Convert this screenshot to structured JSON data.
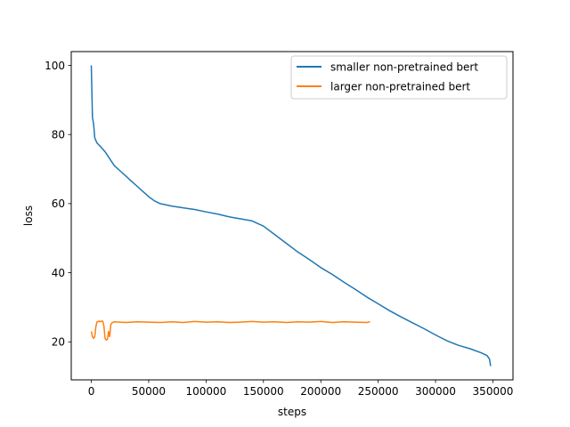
{
  "chart_data": {
    "type": "line",
    "title": "",
    "xlabel": "steps",
    "ylabel": "loss",
    "xlim": [
      -17500,
      367500
    ],
    "ylim": [
      9.0,
      104.0
    ],
    "x_ticks": [
      0,
      50000,
      100000,
      150000,
      200000,
      250000,
      300000,
      350000
    ],
    "y_ticks": [
      20,
      40,
      60,
      80,
      100
    ],
    "grid": false,
    "legend_position": "top-right",
    "series": [
      {
        "name": "smaller non-pretrained bert",
        "color": "#1f77b4",
        "x": [
          0,
          1000,
          2000,
          3000,
          5000,
          8000,
          12000,
          16000,
          20000,
          25000,
          30000,
          35000,
          40000,
          45000,
          50000,
          55000,
          60000,
          70000,
          80000,
          90000,
          100000,
          110000,
          120000,
          130000,
          140000,
          150000,
          160000,
          170000,
          180000,
          190000,
          200000,
          210000,
          220000,
          230000,
          240000,
          250000,
          260000,
          270000,
          280000,
          290000,
          300000,
          310000,
          320000,
          330000,
          340000,
          345000,
          347000,
          348000
        ],
        "y": [
          100.0,
          85.0,
          83.0,
          79.0,
          77.5,
          76.5,
          75.0,
          73.0,
          71.0,
          69.5,
          68.0,
          66.5,
          65.0,
          63.5,
          62.0,
          60.8,
          60.0,
          59.3,
          58.8,
          58.3,
          57.6,
          57.0,
          56.2,
          55.6,
          55.0,
          53.5,
          51.0,
          48.5,
          46.0,
          43.8,
          41.5,
          39.5,
          37.3,
          35.2,
          33.0,
          31.0,
          29.0,
          27.2,
          25.5,
          23.8,
          22.0,
          20.3,
          19.0,
          18.0,
          16.8,
          16.0,
          15.0,
          13.0
        ]
      },
      {
        "name": "larger non-pretrained bert",
        "color": "#ff7f0e",
        "x": [
          0,
          1000,
          2000,
          3000,
          4000,
          5000,
          6000,
          7000,
          8000,
          9000,
          10000,
          11000,
          12000,
          13000,
          14000,
          15000,
          16000,
          17000,
          18000,
          20000,
          25000,
          30000,
          40000,
          50000,
          60000,
          70000,
          80000,
          90000,
          100000,
          110000,
          120000,
          130000,
          140000,
          150000,
          160000,
          170000,
          180000,
          190000,
          200000,
          210000,
          220000,
          230000,
          240000,
          243000
        ],
        "y": [
          23.0,
          21.5,
          21.0,
          21.5,
          24.5,
          25.8,
          25.9,
          26.0,
          25.8,
          26.0,
          26.0,
          24.5,
          21.0,
          20.5,
          20.8,
          23.0,
          21.5,
          25.0,
          25.5,
          25.8,
          25.7,
          25.6,
          25.8,
          25.7,
          25.6,
          25.8,
          25.6,
          25.9,
          25.7,
          25.8,
          25.6,
          25.7,
          25.9,
          25.7,
          25.8,
          25.6,
          25.8,
          25.7,
          25.9,
          25.6,
          25.8,
          25.7,
          25.6,
          25.8
        ]
      }
    ]
  }
}
